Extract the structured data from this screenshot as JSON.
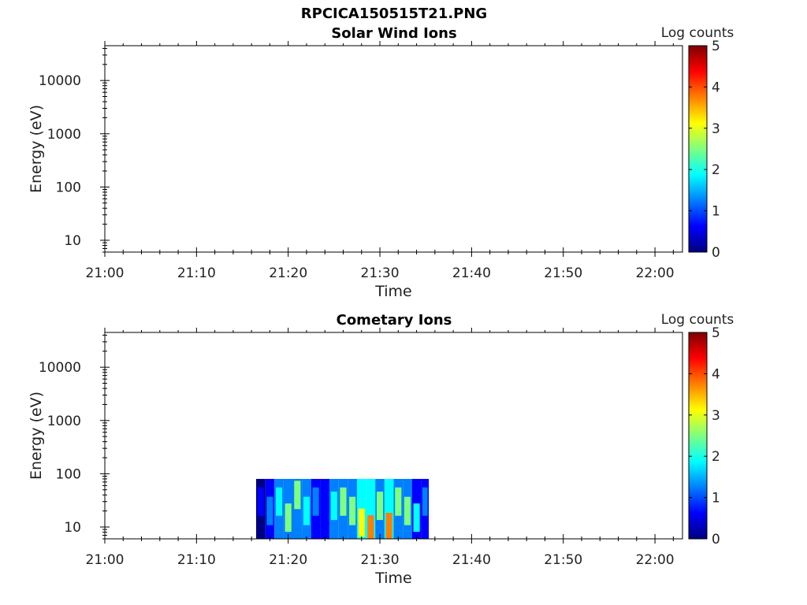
{
  "figure_title": "RPCICA150515T21.PNG",
  "chart_data": [
    {
      "type": "heatmap",
      "title": "Solar Wind Ions",
      "xlabel": "Time",
      "ylabel": "Energy (eV)",
      "y_scale": "log",
      "x_ticks": [
        "21:00",
        "21:10",
        "21:20",
        "21:30",
        "21:40",
        "21:50",
        "22:00"
      ],
      "x_range": [
        "21:00",
        "22:03"
      ],
      "y_ticks": [
        10,
        100,
        1000,
        10000
      ],
      "y_range": [
        6,
        45000
      ],
      "colorbar": {
        "title": "Log counts",
        "range": [
          0,
          5
        ],
        "ticks": [
          0,
          1,
          2,
          3,
          4,
          5
        ],
        "colormap": [
          "#00007f",
          "#0000ff",
          "#007fff",
          "#00ffff",
          "#7fff7f",
          "#ffff00",
          "#ff7f00",
          "#ff0000",
          "#7f0000"
        ]
      },
      "data_time_range": null,
      "data": []
    },
    {
      "type": "heatmap",
      "title": "Cometary Ions",
      "xlabel": "Time",
      "ylabel": "Energy (eV)",
      "y_scale": "log",
      "x_ticks": [
        "21:00",
        "21:10",
        "21:20",
        "21:30",
        "21:40",
        "21:50",
        "22:00"
      ],
      "x_range": [
        "21:00",
        "22:03"
      ],
      "y_ticks": [
        10,
        100,
        1000,
        10000
      ],
      "y_range": [
        6,
        45000
      ],
      "colorbar": {
        "title": "Log counts",
        "range": [
          0,
          5
        ],
        "ticks": [
          0,
          1,
          2,
          3,
          4,
          5
        ],
        "colormap": [
          "#00007f",
          "#0000ff",
          "#007fff",
          "#00ffff",
          "#7fff7f",
          "#ffff00",
          "#ff7f00",
          "#ff0000",
          "#7f0000"
        ]
      },
      "data_time_range": [
        "21:16:30",
        "21:35:20"
      ],
      "data_energy_range": [
        6,
        80
      ],
      "data": [
        {
          "t": "21:16:30",
          "e": 30,
          "v": 0.4
        },
        {
          "t": "21:17:30",
          "e": 20,
          "v": 1.0
        },
        {
          "t": "21:18:30",
          "e": 30,
          "v": 1.8
        },
        {
          "t": "21:19:30",
          "e": 15,
          "v": 2.3
        },
        {
          "t": "21:20:30",
          "e": 40,
          "v": 2.2
        },
        {
          "t": "21:21:30",
          "e": 20,
          "v": 2.0
        },
        {
          "t": "21:22:30",
          "e": 30,
          "v": 1.2
        },
        {
          "t": "21:23:30",
          "e": 15,
          "v": 0.9
        },
        {
          "t": "21:24:30",
          "e": 25,
          "v": 2.0
        },
        {
          "t": "21:25:30",
          "e": 30,
          "v": 2.3
        },
        {
          "t": "21:26:30",
          "e": 20,
          "v": 2.5
        },
        {
          "t": "21:27:30",
          "e": 12,
          "v": 3.1
        },
        {
          "t": "21:28:30",
          "e": 9,
          "v": 3.7
        },
        {
          "t": "21:29:30",
          "e": 25,
          "v": 2.6
        },
        {
          "t": "21:30:30",
          "e": 10,
          "v": 3.6
        },
        {
          "t": "21:31:30",
          "e": 30,
          "v": 2.3
        },
        {
          "t": "21:32:30",
          "e": 20,
          "v": 2.5
        },
        {
          "t": "21:33:30",
          "e": 15,
          "v": 1.7
        },
        {
          "t": "21:34:30",
          "e": 30,
          "v": 1.0
        }
      ]
    }
  ]
}
